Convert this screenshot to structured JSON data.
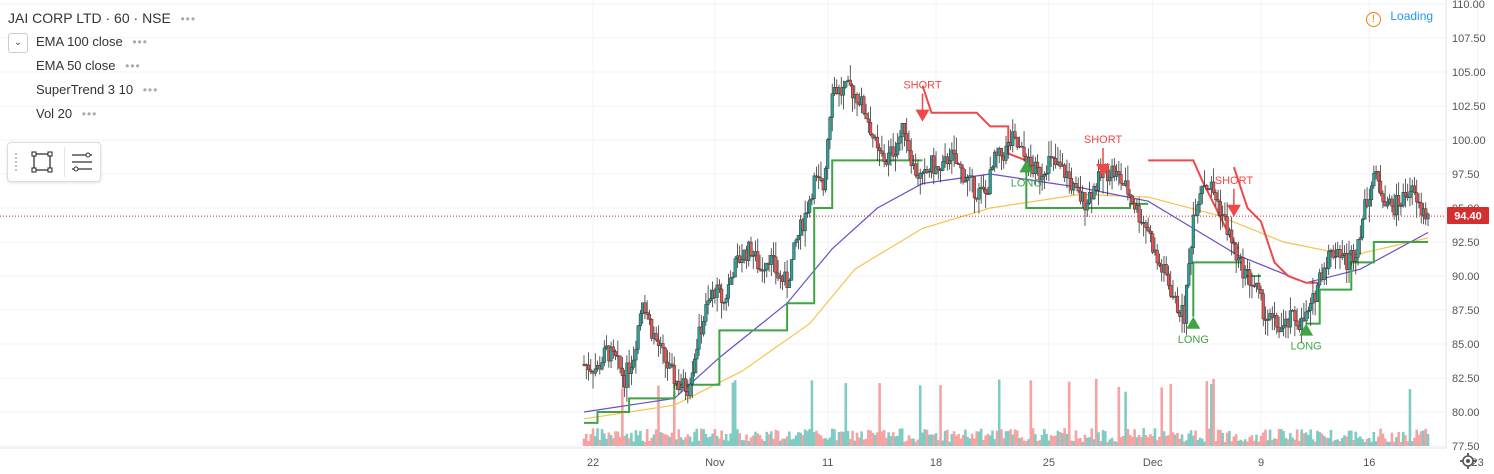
{
  "header": {
    "title": "JAI CORP LTD · 60 · NSE",
    "status": "Loading"
  },
  "indicators": [
    {
      "label": "EMA 100 close"
    },
    {
      "label": "EMA 50 close"
    },
    {
      "label": "SuperTrend 3 10"
    },
    {
      "label": "Vol 20"
    }
  ],
  "colors": {
    "up": "#4caf50",
    "down": "#e57373",
    "candle_up": "#26a69a",
    "candle_down": "#ef5350",
    "ema100": "#f6c34f",
    "ema50": "#6a4fc8",
    "st_up": "#3fa544",
    "st_down": "#f04848",
    "price_line": "#c62828",
    "vol_up": "#80cbc4",
    "vol_down": "#f5a3a3"
  },
  "chart_data": {
    "type": "candlestick",
    "ylim": [
      77.5,
      110.0
    ],
    "y_ticks": [
      "110.00",
      "107.50",
      "105.00",
      "102.50",
      "100.00",
      "97.50",
      "95.00",
      "92.50",
      "90.00",
      "87.50",
      "85.00",
      "82.50",
      "80.00",
      "77.50"
    ],
    "x_ticks": [
      "22",
      "Nov",
      "11",
      "18",
      "25",
      "Dec",
      "9",
      "16",
      "23"
    ],
    "last_price": "94.40",
    "grid": true,
    "close_path": [
      [
        0,
        83.5
      ],
      [
        3,
        83.2
      ],
      [
        5,
        84.5
      ],
      [
        7,
        83.8
      ],
      [
        9,
        82.5
      ],
      [
        11,
        84.2
      ],
      [
        13,
        88.5
      ],
      [
        15,
        86.0
      ],
      [
        17,
        84.5
      ],
      [
        19,
        83.0
      ],
      [
        21,
        82.0
      ],
      [
        23,
        81.8
      ],
      [
        25,
        85.0
      ],
      [
        27,
        87.5
      ],
      [
        29,
        89.0
      ],
      [
        31,
        88.0
      ],
      [
        33,
        90.5
      ],
      [
        35,
        91.5
      ],
      [
        37,
        92.0
      ],
      [
        39,
        90.5
      ],
      [
        41,
        91.5
      ],
      [
        43,
        90.0
      ],
      [
        45,
        89.5
      ],
      [
        47,
        92.5
      ],
      [
        49,
        94.5
      ],
      [
        51,
        97.0
      ],
      [
        53,
        96.5
      ],
      [
        55,
        104.0
      ],
      [
        57,
        103.5
      ],
      [
        59,
        103.8
      ],
      [
        61,
        103.0
      ],
      [
        63,
        101.5
      ],
      [
        65,
        99.0
      ],
      [
        67,
        98.5
      ],
      [
        69,
        99.5
      ],
      [
        71,
        101.0
      ],
      [
        73,
        98.0
      ],
      [
        75,
        97.0
      ],
      [
        77,
        98.2
      ],
      [
        79,
        97.5
      ],
      [
        81,
        99.0
      ],
      [
        83,
        98.0
      ],
      [
        85,
        97.0
      ],
      [
        87,
        96.2
      ],
      [
        89,
        96.0
      ],
      [
        91,
        98.5
      ],
      [
        93,
        99.0
      ],
      [
        95,
        100.0
      ],
      [
        97,
        99.0
      ],
      [
        99,
        98.0
      ],
      [
        101,
        97.5
      ],
      [
        103,
        98.5
      ],
      [
        105,
        98.0
      ],
      [
        107,
        97.5
      ],
      [
        109,
        96.0
      ],
      [
        111,
        95.5
      ],
      [
        113,
        96.5
      ],
      [
        115,
        97.5
      ],
      [
        117,
        97.8
      ],
      [
        119,
        97.0
      ],
      [
        121,
        96.0
      ],
      [
        123,
        94.5
      ],
      [
        125,
        93.5
      ],
      [
        127,
        91.0
      ],
      [
        129,
        90.0
      ],
      [
        131,
        88.0
      ],
      [
        133,
        87.0
      ],
      [
        135,
        94.5
      ],
      [
        137,
        97.0
      ],
      [
        139,
        96.5
      ],
      [
        141,
        95.0
      ],
      [
        143,
        93.0
      ],
      [
        145,
        91.0
      ],
      [
        147,
        90.0
      ],
      [
        149,
        89.0
      ],
      [
        151,
        87.0
      ],
      [
        153,
        86.5
      ],
      [
        155,
        86.0
      ],
      [
        157,
        87.0
      ],
      [
        159,
        86.5
      ],
      [
        161,
        87.5
      ],
      [
        163,
        90.0
      ],
      [
        165,
        91.5
      ],
      [
        167,
        92.0
      ],
      [
        169,
        91.0
      ],
      [
        171,
        92.0
      ],
      [
        173,
        95.0
      ],
      [
        175,
        97.5
      ],
      [
        177,
        96.0
      ],
      [
        179,
        95.0
      ],
      [
        181,
        95.5
      ],
      [
        183,
        96.5
      ],
      [
        185,
        95.0
      ],
      [
        187,
        94.4
      ]
    ],
    "ema50": [
      [
        0,
        80.0
      ],
      [
        20,
        81.0
      ],
      [
        30,
        84.0
      ],
      [
        45,
        88.0
      ],
      [
        55,
        92.0
      ],
      [
        65,
        95.0
      ],
      [
        75,
        96.8
      ],
      [
        90,
        97.5
      ],
      [
        110,
        96.5
      ],
      [
        125,
        95.5
      ],
      [
        135,
        93.5
      ],
      [
        145,
        91.5
      ],
      [
        160,
        89.5
      ],
      [
        172,
        90.5
      ],
      [
        187,
        93.2
      ]
    ],
    "ema100": [
      [
        0,
        79.5
      ],
      [
        20,
        80.5
      ],
      [
        35,
        83.0
      ],
      [
        50,
        86.5
      ],
      [
        60,
        90.5
      ],
      [
        75,
        93.5
      ],
      [
        90,
        95.0
      ],
      [
        110,
        96.0
      ],
      [
        125,
        95.8
      ],
      [
        140,
        94.5
      ],
      [
        155,
        92.5
      ],
      [
        170,
        91.5
      ],
      [
        187,
        92.8
      ]
    ],
    "supertrend_up": [
      [
        [
          0,
          79.2
        ],
        [
          3,
          79.2
        ],
        [
          3,
          80.0
        ],
        [
          10,
          80.0
        ],
        [
          10,
          81.0
        ],
        [
          20,
          81.0
        ],
        [
          20,
          82.0
        ],
        [
          30,
          82.0
        ],
        [
          30,
          86.0
        ],
        [
          45,
          86.0
        ],
        [
          45,
          88.0
        ],
        [
          51,
          88.0
        ],
        [
          51,
          95.0
        ],
        [
          55,
          95.0
        ],
        [
          55,
          98.5
        ],
        [
          75,
          98.5
        ]
      ],
      [
        [
          98,
          98.5
        ],
        [
          98,
          95.0
        ],
        [
          121,
          95.0
        ],
        [
          121,
          95.3
        ],
        [
          125,
          95.3
        ]
      ],
      [
        [
          135,
          87.0
        ],
        [
          135,
          91.0
        ],
        [
          146,
          91.0
        ],
        [
          146,
          90.0
        ],
        [
          150,
          90.0
        ]
      ],
      [
        [
          160,
          86.5
        ],
        [
          163,
          86.5
        ],
        [
          163,
          89.0
        ],
        [
          170,
          89.0
        ],
        [
          170,
          91.0
        ],
        [
          175,
          91.0
        ],
        [
          175,
          92.5
        ],
        [
          187,
          92.5
        ]
      ]
    ],
    "supertrend_down": [
      [
        [
          75,
          104.0
        ],
        [
          77,
          102.0
        ],
        [
          87,
          102.0
        ],
        [
          90,
          101.0
        ],
        [
          94,
          101.0
        ],
        [
          94,
          99.0
        ],
        [
          98,
          98.5
        ]
      ],
      [
        [
          125,
          98.5
        ],
        [
          125,
          98.5
        ],
        [
          135,
          98.5
        ],
        [
          137,
          97.0
        ],
        [
          140,
          95.0
        ],
        [
          143,
          93.0
        ],
        [
          145,
          92.0
        ]
      ],
      [
        [
          144,
          98.0
        ],
        [
          147,
          95.0
        ],
        [
          150,
          94.0
        ],
        [
          153,
          91.0
        ],
        [
          156,
          90.0
        ],
        [
          160,
          89.5
        ],
        [
          163,
          89.5
        ]
      ]
    ],
    "signals": [
      {
        "type": "SHORT",
        "label": "SHORT",
        "x": 75,
        "y": 101.5
      },
      {
        "type": "LONG",
        "label": "LONG",
        "x": 98,
        "y": 98.5
      },
      {
        "type": "SHORT",
        "label": "SHORT",
        "x": 115,
        "y": 97.5
      },
      {
        "type": "LONG",
        "label": "LONG",
        "x": 135,
        "y": 87.0
      },
      {
        "type": "SHORT",
        "label": "SHORT",
        "x": 144,
        "y": 94.5
      },
      {
        "type": "LONG",
        "label": "LONG",
        "x": 160,
        "y": 86.5
      }
    ]
  }
}
